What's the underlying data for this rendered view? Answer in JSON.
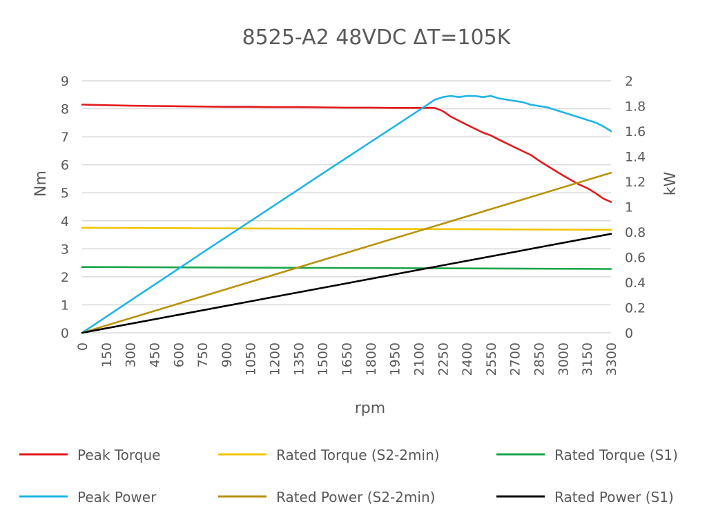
{
  "chart_data": {
    "type": "line",
    "title": "8525-A2 48VDC ΔT=105K",
    "xlabel": "rpm",
    "ylabel": "Nm",
    "y2label": "kW",
    "xlim": [
      0,
      3300
    ],
    "ylim": [
      0,
      9
    ],
    "y2lim": [
      0,
      2
    ],
    "x_ticks": [
      0,
      150,
      300,
      450,
      600,
      750,
      900,
      1050,
      1200,
      1350,
      1500,
      1650,
      1800,
      1950,
      2100,
      2250,
      2400,
      2550,
      2700,
      2850,
      3000,
      3150,
      3300
    ],
    "y_ticks": [
      0,
      1,
      2,
      3,
      4,
      5,
      6,
      7,
      8,
      9
    ],
    "y2_ticks": [
      "0",
      "0.2",
      "0.4",
      "0.6",
      "0.8",
      "1",
      "1.2",
      "1.4",
      "1.6",
      "1.8",
      "2"
    ],
    "grid": true,
    "legend_position": "bottom",
    "series": [
      {
        "name": "Peak Torque",
        "axis": "left",
        "color": "#e31a1c",
        "x": [
          0,
          150,
          300,
          450,
          600,
          750,
          900,
          1050,
          1200,
          1350,
          1500,
          1650,
          1800,
          1950,
          2100,
          2200,
          2250,
          2300,
          2400,
          2500,
          2550,
          2600,
          2700,
          2800,
          2850,
          2900,
          3000,
          3100,
          3150,
          3200,
          3250,
          3300
        ],
        "y": [
          8.15,
          8.13,
          8.11,
          8.1,
          8.09,
          8.08,
          8.07,
          8.07,
          8.06,
          8.06,
          8.05,
          8.04,
          8.04,
          8.03,
          8.03,
          8.03,
          7.92,
          7.72,
          7.43,
          7.15,
          7.05,
          6.9,
          6.62,
          6.35,
          6.15,
          5.97,
          5.62,
          5.3,
          5.17,
          5.0,
          4.8,
          4.67
        ]
      },
      {
        "name": "Rated Torque (S2-2min)",
        "axis": "left",
        "color": "#f2c500",
        "x": [
          0,
          3300
        ],
        "y": [
          3.75,
          3.68
        ]
      },
      {
        "name": "Rated Torque (S1)",
        "axis": "left",
        "color": "#1aa34a",
        "x": [
          0,
          3300
        ],
        "y": [
          2.35,
          2.28
        ]
      },
      {
        "name": "Peak Power",
        "axis": "right",
        "color": "#1eb4e6",
        "x": [
          0,
          150,
          300,
          450,
          600,
          750,
          900,
          1050,
          1200,
          1350,
          1500,
          1650,
          1800,
          1950,
          2100,
          2200,
          2250,
          2300,
          2350,
          2400,
          2450,
          2500,
          2550,
          2600,
          2650,
          2700,
          2750,
          2800,
          2850,
          2900,
          2950,
          3000,
          3050,
          3100,
          3150,
          3200,
          3250,
          3300
        ],
        "y": [
          0,
          0.127,
          0.254,
          0.381,
          0.508,
          0.635,
          0.761,
          0.886,
          1.012,
          1.138,
          1.264,
          1.389,
          1.514,
          1.639,
          1.765,
          1.85,
          1.87,
          1.88,
          1.87,
          1.88,
          1.88,
          1.87,
          1.88,
          1.86,
          1.85,
          1.84,
          1.83,
          1.81,
          1.8,
          1.79,
          1.77,
          1.75,
          1.73,
          1.71,
          1.69,
          1.67,
          1.64,
          1.6
        ]
      },
      {
        "name": "Rated Power (S2-2min)",
        "axis": "right",
        "color": "#b8920a",
        "x": [
          0,
          3300
        ],
        "y": [
          0,
          1.27
        ]
      },
      {
        "name": "Rated Power (S1)",
        "axis": "right",
        "color": "#000000",
        "x": [
          0,
          3300
        ],
        "y": [
          0,
          0.785
        ]
      }
    ]
  }
}
